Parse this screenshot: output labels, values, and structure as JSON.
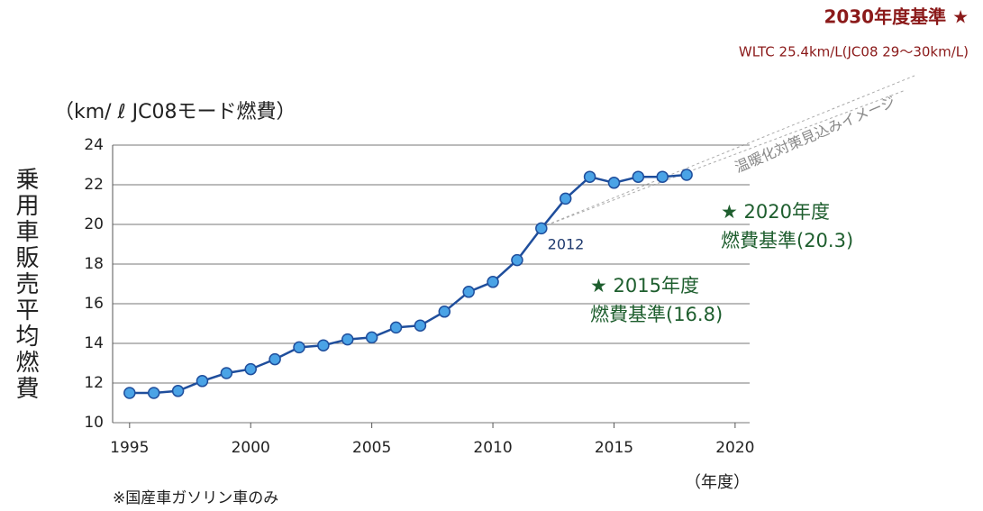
{
  "chart_data": {
    "type": "line",
    "y_axis_unit": "（km/ ℓ  JC08モード燃費）",
    "ylabel": "乗用車販売平均燃費",
    "xlabel": "（年度）",
    "footnote": "※国産車ガソリン車のみ",
    "annotations": [
      "2030年度基準 ★",
      "WLTC 25.4km/L(JC08 29～30km/L)",
      "温暖化対策見込みイメージ",
      "2012",
      "★ 2020年度",
      "燃費基準(20.3)",
      "★ 2015年度",
      "燃費基準(16.8)"
    ],
    "x": [
      1995,
      1996,
      1997,
      1998,
      1999,
      2000,
      2001,
      2002,
      2003,
      2004,
      2005,
      2006,
      2007,
      2008,
      2009,
      2010,
      2011,
      2012,
      2013,
      2014,
      2015,
      2016,
      2017,
      2018
    ],
    "series": [
      {
        "color": "#1f4e9c",
        "values": [
          11.5,
          11.5,
          11.6,
          12.1,
          12.5,
          12.7,
          13.2,
          13.8,
          13.9,
          14.2,
          14.3,
          14.8,
          14.9,
          15.6,
          16.6,
          17.1,
          18.2,
          19.8,
          21.3,
          22.4,
          22.1,
          22.4,
          22.4,
          22.5
        ]
      }
    ],
    "xlim": [
      1994.3,
      2020.6
    ],
    "ylim": [
      10,
      24
    ],
    "xticks": [
      1995,
      2000,
      2005,
      2010,
      2015,
      2020
    ],
    "yticks": [
      10,
      12,
      14,
      16,
      18,
      20,
      22,
      24
    ],
    "grid": true
  }
}
